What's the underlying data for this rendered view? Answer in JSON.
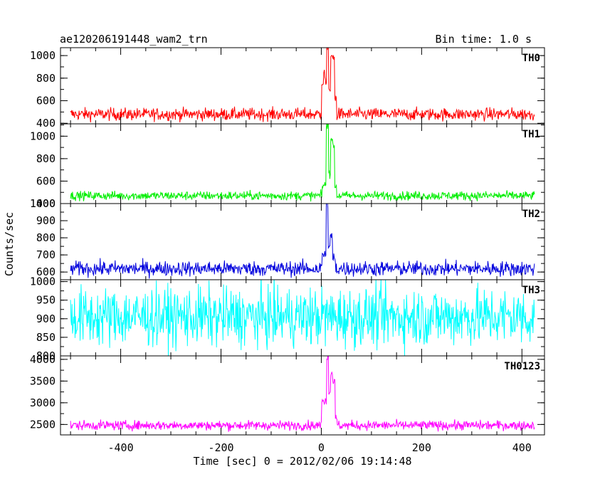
{
  "header": {
    "title": "ae120206191448_wam2_trn",
    "bin_time": "Bin time: 1.0 s"
  },
  "colors": {
    "TH0": "#ff0000",
    "TH1": "#00ee00",
    "TH2": "#0000dd",
    "TH3": "#00ffff",
    "TH0123": "#ff00ff"
  },
  "chart_data": {
    "type": "line",
    "xlabel": "Time [sec] 0 = 2012/02/06 19:14:48",
    "ylabel": "Counts/sec",
    "xlim": [
      -520,
      445
    ],
    "x_range_data": [
      -500,
      425
    ],
    "x_ticks": [
      -400,
      -200,
      0,
      200,
      400
    ],
    "series": [
      {
        "name": "TH0",
        "ylim": [
          395,
          1070
        ],
        "y_ticks": [
          400,
          600,
          800,
          1000
        ],
        "baseline": 480,
        "noise": 28,
        "peak": 1060,
        "features": [
          [
            1,
            10,
            760
          ],
          [
            5,
            8,
            830
          ],
          [
            11,
            14,
            1060
          ],
          [
            15,
            18,
            700
          ],
          [
            19,
            22,
            1000
          ],
          [
            23,
            26,
            980
          ],
          [
            27,
            30,
            620
          ]
        ]
      },
      {
        "name": "TH1",
        "ylim": [
          400,
          1110
        ],
        "y_ticks": [
          400,
          600,
          800,
          1000
        ],
        "baseline": 470,
        "noise": 20,
        "peak": 1100,
        "features": [
          [
            2,
            9,
            560
          ],
          [
            10,
            14,
            1100
          ],
          [
            15,
            18,
            660
          ],
          [
            19,
            22,
            980
          ],
          [
            23,
            26,
            900
          ],
          [
            27,
            30,
            560
          ]
        ]
      },
      {
        "name": "TH2",
        "ylim": [
          555,
          1000
        ],
        "y_ticks": [
          600,
          700,
          800,
          900,
          1000
        ],
        "baseline": 620,
        "noise": 22,
        "peak": 990,
        "features": [
          [
            2,
            9,
            700
          ],
          [
            10,
            13,
            990
          ],
          [
            14,
            17,
            760
          ],
          [
            18,
            22,
            810
          ],
          [
            23,
            28,
            680
          ]
        ]
      },
      {
        "name": "TH3",
        "ylim": [
          800,
          1005
        ],
        "y_ticks": [
          800,
          850,
          900,
          950,
          1000
        ],
        "baseline": 905,
        "noise": 40,
        "peak": 1000,
        "features": []
      },
      {
        "name": "TH0123",
        "ylim": [
          2260,
          4080
        ],
        "y_ticks": [
          2500,
          3000,
          3500,
          4000
        ],
        "baseline": 2480,
        "noise": 55,
        "peak": 4050,
        "features": [
          [
            1,
            10,
            3050
          ],
          [
            11,
            14,
            4050
          ],
          [
            15,
            18,
            3200
          ],
          [
            19,
            22,
            3700
          ],
          [
            23,
            27,
            3500
          ],
          [
            28,
            31,
            2650
          ]
        ]
      }
    ]
  }
}
